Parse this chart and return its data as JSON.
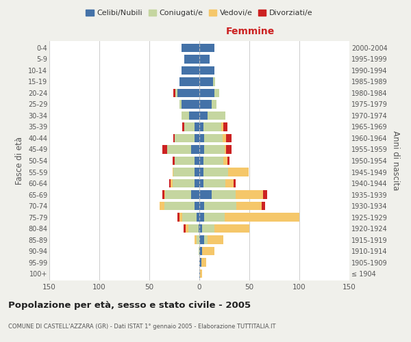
{
  "age_groups": [
    "100+",
    "95-99",
    "90-94",
    "85-89",
    "80-84",
    "75-79",
    "70-74",
    "65-69",
    "60-64",
    "55-59",
    "50-54",
    "45-49",
    "40-44",
    "35-39",
    "30-34",
    "25-29",
    "20-24",
    "15-19",
    "10-14",
    "5-9",
    "0-4"
  ],
  "birth_years": [
    "≤ 1904",
    "1905-1909",
    "1910-1914",
    "1915-1919",
    "1920-1924",
    "1925-1929",
    "1930-1934",
    "1935-1939",
    "1940-1944",
    "1945-1949",
    "1950-1954",
    "1955-1959",
    "1960-1964",
    "1965-1969",
    "1970-1974",
    "1975-1979",
    "1980-1984",
    "1985-1989",
    "1990-1994",
    "1995-1999",
    "2000-2004"
  ],
  "colors": {
    "celibi": "#4472a8",
    "coniugati": "#c5d6a0",
    "vedovi": "#f5c76a",
    "divorziati": "#cc2222"
  },
  "maschi": {
    "celibi": [
      0,
      0,
      0,
      0,
      1,
      3,
      5,
      8,
      5,
      5,
      5,
      8,
      5,
      5,
      10,
      18,
      22,
      20,
      18,
      15,
      18
    ],
    "coniugati": [
      0,
      0,
      1,
      3,
      10,
      14,
      30,
      26,
      22,
      21,
      20,
      24,
      20,
      10,
      8,
      2,
      2,
      0,
      0,
      0,
      0
    ],
    "vedovi": [
      0,
      0,
      0,
      2,
      3,
      3,
      5,
      1,
      2,
      1,
      0,
      0,
      0,
      0,
      0,
      0,
      0,
      0,
      0,
      0,
      0
    ],
    "divorziati": [
      0,
      0,
      0,
      0,
      2,
      2,
      0,
      2,
      1,
      0,
      2,
      5,
      1,
      2,
      0,
      0,
      2,
      0,
      0,
      0,
      0
    ]
  },
  "femmine": {
    "celibi": [
      1,
      2,
      3,
      5,
      3,
      5,
      5,
      12,
      4,
      4,
      4,
      5,
      5,
      4,
      8,
      12,
      15,
      14,
      15,
      10,
      15
    ],
    "coniugati": [
      0,
      0,
      0,
      3,
      12,
      20,
      32,
      24,
      22,
      25,
      20,
      20,
      18,
      18,
      18,
      5,
      5,
      2,
      0,
      0,
      0
    ],
    "vedovi": [
      2,
      5,
      12,
      16,
      35,
      75,
      25,
      28,
      8,
      20,
      4,
      2,
      4,
      2,
      0,
      0,
      0,
      0,
      0,
      0,
      0
    ],
    "divorziati": [
      0,
      0,
      0,
      0,
      0,
      0,
      4,
      4,
      2,
      0,
      2,
      5,
      5,
      4,
      0,
      0,
      0,
      0,
      0,
      0,
      0
    ]
  },
  "xlim": 150,
  "title": "Popolazione per età, sesso e stato civile - 2005",
  "subtitle": "COMUNE DI CASTELL'AZZARA (GR) - Dati ISTAT 1° gennaio 2005 - Elaborazione TUTTITALIA.IT",
  "ylabel_left": "Fasce di età",
  "ylabel_right": "Anni di nascita",
  "legend_labels": [
    "Celibi/Nubili",
    "Coniugati/e",
    "Vedovi/e",
    "Divorziati/e"
  ],
  "bg_color": "#f0f0eb",
  "plot_bg": "#ffffff",
  "grid_color": "#cccccc",
  "maschi_color": "#333333",
  "femmine_color": "#cc2222"
}
